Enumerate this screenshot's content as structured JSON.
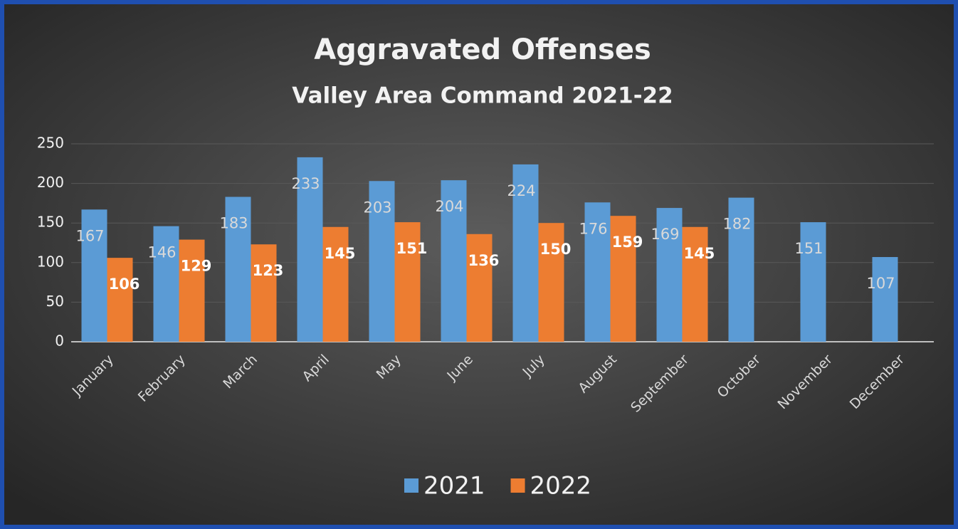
{
  "chart_data": {
    "type": "bar",
    "title": "Aggravated Offenses",
    "subtitle": "Valley Area Command 2021-22",
    "categories": [
      "January",
      "February",
      "March",
      "April",
      "May",
      "June",
      "July",
      "August",
      "September",
      "October",
      "November",
      "December"
    ],
    "series": [
      {
        "name": "2021",
        "color": "#5b9bd5",
        "values": [
          167,
          146,
          183,
          233,
          203,
          204,
          224,
          176,
          169,
          182,
          151,
          107
        ]
      },
      {
        "name": "2022",
        "color": "#ed7d31",
        "values": [
          106,
          129,
          123,
          145,
          151,
          136,
          150,
          159,
          145,
          null,
          null,
          null
        ]
      }
    ],
    "ylim": [
      0,
      250
    ],
    "yticks": [
      0,
      50,
      100,
      150,
      200,
      250
    ],
    "grid": true,
    "legend": "bottom"
  }
}
